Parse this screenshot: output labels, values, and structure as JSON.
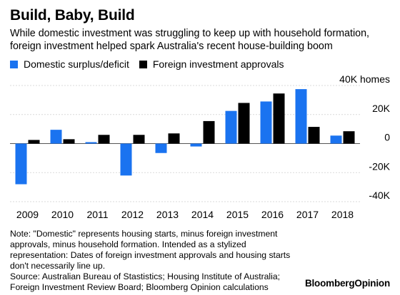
{
  "header": {
    "title": "Build, Baby, Build",
    "subtitle_lines": [
      "While domestic investment was struggling to keep up with household formation,",
      "foreign investment helped spark Australia's recent house-building boom"
    ]
  },
  "footer": {
    "note_lines": [
      "Note: \"Domestic\" represents housing starts, minus foreign investment",
      "approvals, minus household formation. Intended as a stylized",
      "representation: Dates of foreign investment approvals and housing starts",
      "don't necessarily line up.",
      "Source: Australian Bureau of Stastistics; Housing Institute of Australia;",
      "Foreign Investment Review Board; Bloomberg Opinion calculations"
    ],
    "brand_bloomberg": "Bloomberg",
    "brand_opinion": "Opinion"
  },
  "colors": {
    "domestic": "#1a73f0",
    "foreign": "#000000",
    "grid": "#d9d9d9",
    "zero": "#555555"
  },
  "chart_data": {
    "type": "bar",
    "categories": [
      "2009",
      "2010",
      "2011",
      "2012",
      "2013",
      "2014",
      "2015",
      "2016",
      "2017",
      "2018"
    ],
    "series": [
      {
        "name": "Domestic surplus/deficit",
        "values": [
          -28000,
          9500,
          1000,
          -22000,
          -6500,
          -2000,
          22500,
          29000,
          37500,
          5500
        ]
      },
      {
        "name": "Foreign investment approvals",
        "values": [
          2500,
          3000,
          6000,
          6000,
          7000,
          15500,
          28000,
          34500,
          11500,
          8500
        ]
      }
    ],
    "y_ticks": [
      {
        "value": 40000,
        "label": "40K homes"
      },
      {
        "value": 20000,
        "label": "20K"
      },
      {
        "value": 0,
        "label": "0"
      },
      {
        "value": -20000,
        "label": "-20K"
      },
      {
        "value": -40000,
        "label": "-40K"
      }
    ],
    "ylim": [
      -40000,
      40000
    ],
    "grid": true,
    "legend_position": "top-left"
  }
}
